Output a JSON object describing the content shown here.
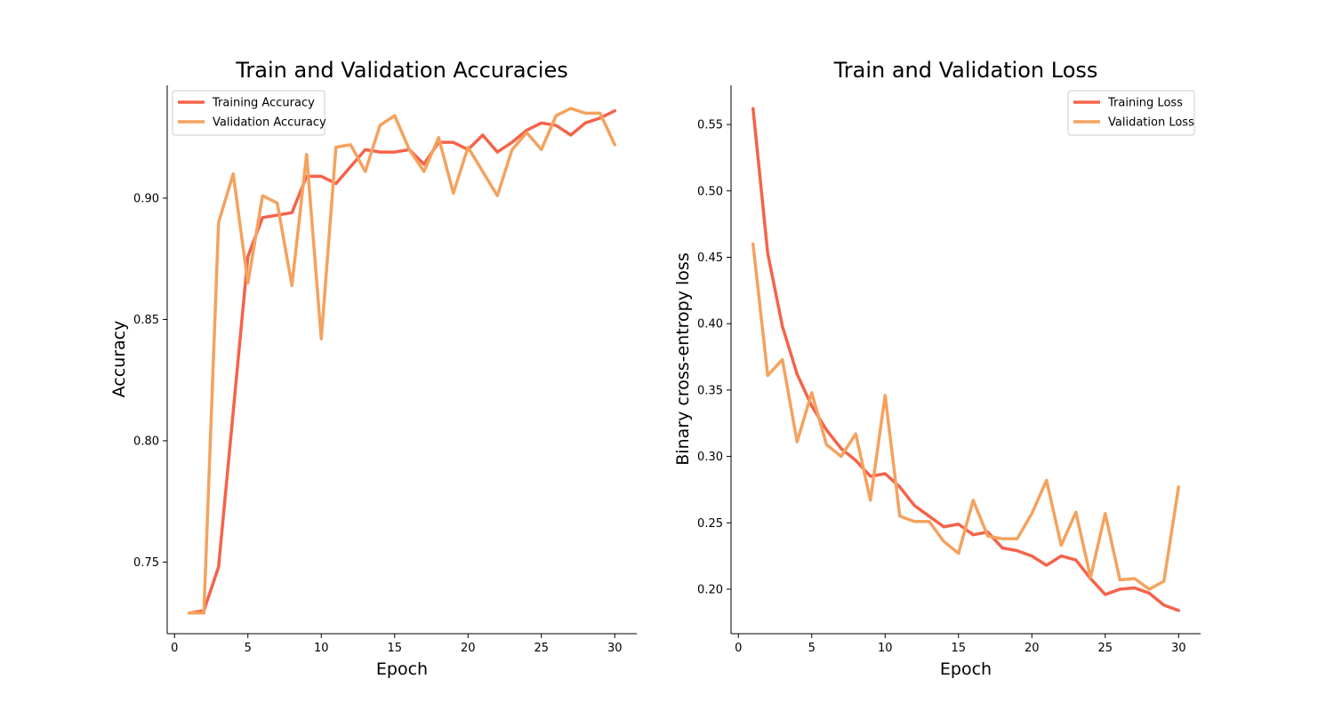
{
  "chart_data": [
    {
      "type": "line",
      "title": "Train and Validation Accuracies",
      "xlabel": "Epoch",
      "ylabel": "Accuracy",
      "xlim": [
        -0.5,
        31.5
      ],
      "ylim": [
        0.7205,
        0.9465
      ],
      "xticks": [
        0,
        5,
        10,
        15,
        20,
        25,
        30
      ],
      "yticks": [
        0.75,
        0.8,
        0.85,
        0.9
      ],
      "ytick_format": 2,
      "legend": "upper-left",
      "grid": false,
      "x": [
        1,
        2,
        3,
        4,
        5,
        6,
        7,
        8,
        9,
        10,
        11,
        12,
        13,
        14,
        15,
        16,
        17,
        18,
        19,
        20,
        21,
        22,
        23,
        24,
        25,
        26,
        27,
        28,
        29,
        30
      ],
      "series": [
        {
          "name": "Training Accuracy",
          "color": "#f4634a",
          "values": [
            0.729,
            0.73,
            0.748,
            0.812,
            0.876,
            0.892,
            0.893,
            0.894,
            0.909,
            0.909,
            0.906,
            0.913,
            0.92,
            0.919,
            0.919,
            0.92,
            0.914,
            0.923,
            0.923,
            0.92,
            0.926,
            0.919,
            0.923,
            0.928,
            0.931,
            0.93,
            0.926,
            0.931,
            0.933,
            0.936
          ]
        },
        {
          "name": "Validation Accuracy",
          "color": "#f4a25e",
          "values": [
            0.729,
            0.729,
            0.89,
            0.91,
            0.865,
            0.901,
            0.898,
            0.864,
            0.918,
            0.842,
            0.921,
            0.922,
            0.911,
            0.93,
            0.934,
            0.92,
            0.911,
            0.925,
            0.902,
            0.921,
            0.911,
            0.901,
            0.92,
            0.927,
            0.92,
            0.934,
            0.937,
            0.935,
            0.935,
            0.922
          ]
        }
      ]
    },
    {
      "type": "line",
      "title": "Train and Validation Loss",
      "xlabel": "Epoch",
      "ylabel": "Binary cross-entropy loss",
      "xlim": [
        -0.5,
        31.5
      ],
      "ylim": [
        0.1665,
        0.5795
      ],
      "xticks": [
        0,
        5,
        10,
        15,
        20,
        25,
        30
      ],
      "yticks": [
        0.2,
        0.25,
        0.3,
        0.35,
        0.4,
        0.45,
        0.5,
        0.55
      ],
      "ytick_format": 2,
      "legend": "upper-right",
      "grid": false,
      "x": [
        1,
        2,
        3,
        4,
        5,
        6,
        7,
        8,
        9,
        10,
        11,
        12,
        13,
        14,
        15,
        16,
        17,
        18,
        19,
        20,
        21,
        22,
        23,
        24,
        25,
        26,
        27,
        28,
        29,
        30
      ],
      "series": [
        {
          "name": "Training Loss",
          "color": "#f4634a",
          "values": [
            0.562,
            0.453,
            0.398,
            0.362,
            0.338,
            0.32,
            0.306,
            0.297,
            0.285,
            0.287,
            0.277,
            0.263,
            0.255,
            0.247,
            0.249,
            0.241,
            0.243,
            0.231,
            0.229,
            0.225,
            0.218,
            0.225,
            0.222,
            0.208,
            0.196,
            0.2,
            0.201,
            0.197,
            0.188,
            0.184
          ]
        },
        {
          "name": "Validation Loss",
          "color": "#f4a25e",
          "values": [
            0.46,
            0.361,
            0.373,
            0.311,
            0.348,
            0.309,
            0.3,
            0.317,
            0.267,
            0.346,
            0.255,
            0.251,
            0.251,
            0.236,
            0.227,
            0.267,
            0.24,
            0.238,
            0.238,
            0.257,
            0.282,
            0.233,
            0.258,
            0.209,
            0.257,
            0.207,
            0.208,
            0.2,
            0.206,
            0.277
          ]
        }
      ]
    }
  ]
}
